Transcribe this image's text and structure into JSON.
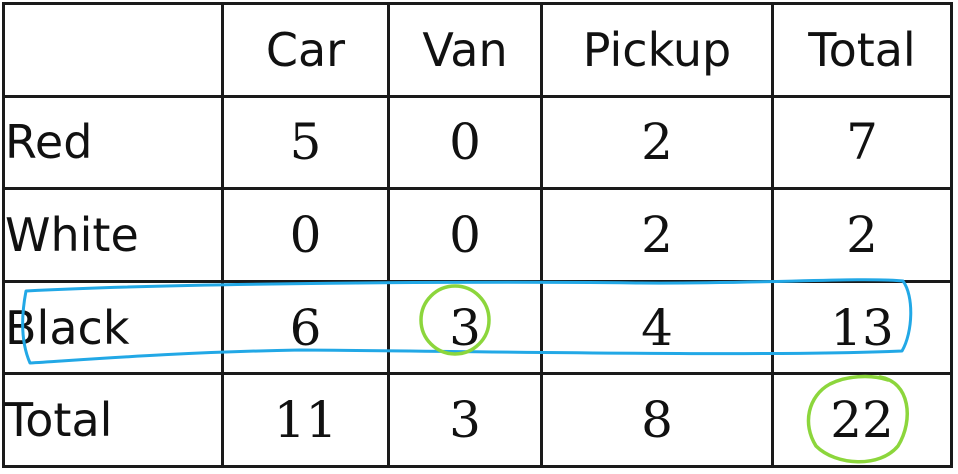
{
  "table": {
    "columns": [
      "",
      "Car",
      "Van",
      "Pickup",
      "Total"
    ],
    "rows": [
      {
        "label": "Red",
        "values": [
          "5",
          "0",
          "2",
          "7"
        ]
      },
      {
        "label": "White",
        "values": [
          "0",
          "0",
          "2",
          "2"
        ]
      },
      {
        "label": "Black",
        "values": [
          "6",
          "3",
          "4",
          "13"
        ]
      },
      {
        "label": "Total",
        "values": [
          "11",
          "3",
          "8",
          "22"
        ]
      }
    ]
  },
  "annotations": {
    "row_outline_color": "#22a8e6",
    "circle_color": "#8cd63c",
    "highlighted_row": "Black",
    "circled_cells": [
      "Black/Van",
      "Total/Total"
    ]
  }
}
